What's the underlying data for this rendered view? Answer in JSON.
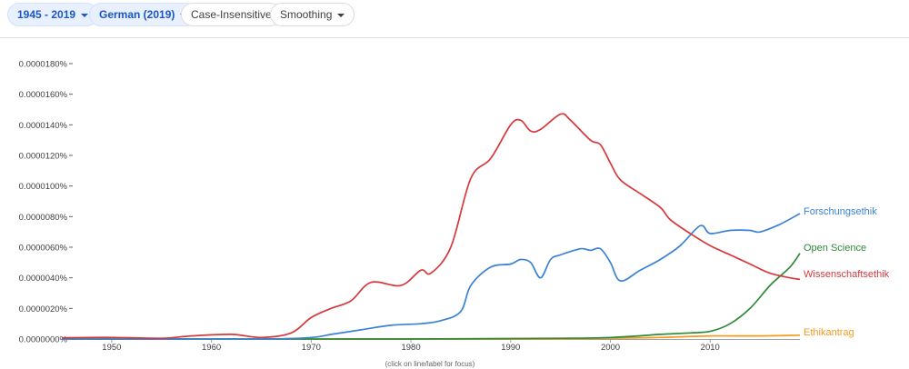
{
  "toolbar": {
    "range": "1945 - 2019",
    "corpus": "German (2019)",
    "case": "Case-Insensitive",
    "smoothing": "Smoothing"
  },
  "footer_note": "(click on line/label for focus)",
  "colors": {
    "Forschungsethik": "#3b82d6",
    "Open Science": "#2e8b3a",
    "Wissenschaftsethik": "#d6383b",
    "Ethikantrag": "#f59a1b"
  },
  "chart_data": {
    "type": "line",
    "x_range": [
      1945,
      2019
    ],
    "ylim": [
      0,
      1.8e-05
    ],
    "y_ticks": [
      "0.0000000%",
      "0.0000020%",
      "0.0000040%",
      "0.0000060%",
      "0.0000080%",
      "0.0000100%",
      "0.0000120%",
      "0.0000140%",
      "0.0000160%",
      "0.0000180%"
    ],
    "x_ticks": [
      "1950",
      "1960",
      "1970",
      "1980",
      "1990",
      "2000",
      "2010"
    ],
    "grid": false,
    "legend": "line-end labels",
    "series": [
      {
        "name": "Wissenschaftsethik",
        "points": [
          [
            1945,
            8e-08
          ],
          [
            1950,
            1e-07
          ],
          [
            1955,
            5e-08
          ],
          [
            1958,
            2e-07
          ],
          [
            1962,
            3e-07
          ],
          [
            1965,
            1e-07
          ],
          [
            1968,
            4e-07
          ],
          [
            1970,
            1.4e-06
          ],
          [
            1972,
            2e-06
          ],
          [
            1974,
            2.5e-06
          ],
          [
            1976,
            3.7e-06
          ],
          [
            1979,
            3.5e-06
          ],
          [
            1981,
            4.5e-06
          ],
          [
            1982,
            4.3e-06
          ],
          [
            1984,
            6e-06
          ],
          [
            1986,
            1.05e-05
          ],
          [
            1988,
            1.18e-05
          ],
          [
            1990,
            1.4e-05
          ],
          [
            1991,
            1.43e-05
          ],
          [
            1992,
            1.36e-05
          ],
          [
            1993,
            1.37e-05
          ],
          [
            1995,
            1.47e-05
          ],
          [
            1996,
            1.43e-05
          ],
          [
            1998,
            1.3e-05
          ],
          [
            1999,
            1.27e-05
          ],
          [
            2000,
            1.15e-05
          ],
          [
            2001,
            1.04e-05
          ],
          [
            2003,
            9.5e-06
          ],
          [
            2005,
            8.6e-06
          ],
          [
            2006,
            7.8e-06
          ],
          [
            2008,
            6.9e-06
          ],
          [
            2010,
            6.1e-06
          ],
          [
            2012,
            5.5e-06
          ],
          [
            2014,
            4.9e-06
          ],
          [
            2016,
            4.3e-06
          ],
          [
            2018,
            4e-06
          ],
          [
            2019,
            3.9e-06
          ]
        ]
      },
      {
        "name": "Forschungsethik",
        "points": [
          [
            1945,
            0
          ],
          [
            1965,
            0
          ],
          [
            1970,
            1e-07
          ],
          [
            1972,
            3e-07
          ],
          [
            1975,
            6e-07
          ],
          [
            1978,
            9e-07
          ],
          [
            1981,
            1e-06
          ],
          [
            1983,
            1.2e-06
          ],
          [
            1985,
            1.8e-06
          ],
          [
            1986,
            3.5e-06
          ],
          [
            1988,
            4.7e-06
          ],
          [
            1990,
            4.9e-06
          ],
          [
            1991,
            5.2e-06
          ],
          [
            1992,
            5e-06
          ],
          [
            1993,
            4e-06
          ],
          [
            1994,
            5.2e-06
          ],
          [
            1995,
            5.5e-06
          ],
          [
            1997,
            5.9e-06
          ],
          [
            1998,
            5.8e-06
          ],
          [
            1999,
            5.9e-06
          ],
          [
            2000,
            5e-06
          ],
          [
            2001,
            3.8e-06
          ],
          [
            2003,
            4.5e-06
          ],
          [
            2005,
            5.2e-06
          ],
          [
            2007,
            6.1e-06
          ],
          [
            2009,
            7.4e-06
          ],
          [
            2010,
            6.9e-06
          ],
          [
            2012,
            7.1e-06
          ],
          [
            2014,
            7.1e-06
          ],
          [
            2015,
            7e-06
          ],
          [
            2017,
            7.5e-06
          ],
          [
            2019,
            8.2e-06
          ]
        ]
      },
      {
        "name": "Open Science",
        "points": [
          [
            1945,
            0
          ],
          [
            1980,
            0
          ],
          [
            1995,
            5e-08
          ],
          [
            2000,
            1e-07
          ],
          [
            2005,
            3e-07
          ],
          [
            2008,
            4e-07
          ],
          [
            2010,
            5e-07
          ],
          [
            2012,
            1e-06
          ],
          [
            2014,
            2e-06
          ],
          [
            2016,
            3.5e-06
          ],
          [
            2018,
            4.7e-06
          ],
          [
            2019,
            5.6e-06
          ]
        ]
      },
      {
        "name": "Ethikantrag",
        "points": [
          [
            1945,
            0
          ],
          [
            1990,
            0
          ],
          [
            2000,
            5e-08
          ],
          [
            2005,
            1e-07
          ],
          [
            2010,
            2e-07
          ],
          [
            2015,
            2e-07
          ],
          [
            2019,
            2.5e-07
          ]
        ]
      }
    ]
  }
}
